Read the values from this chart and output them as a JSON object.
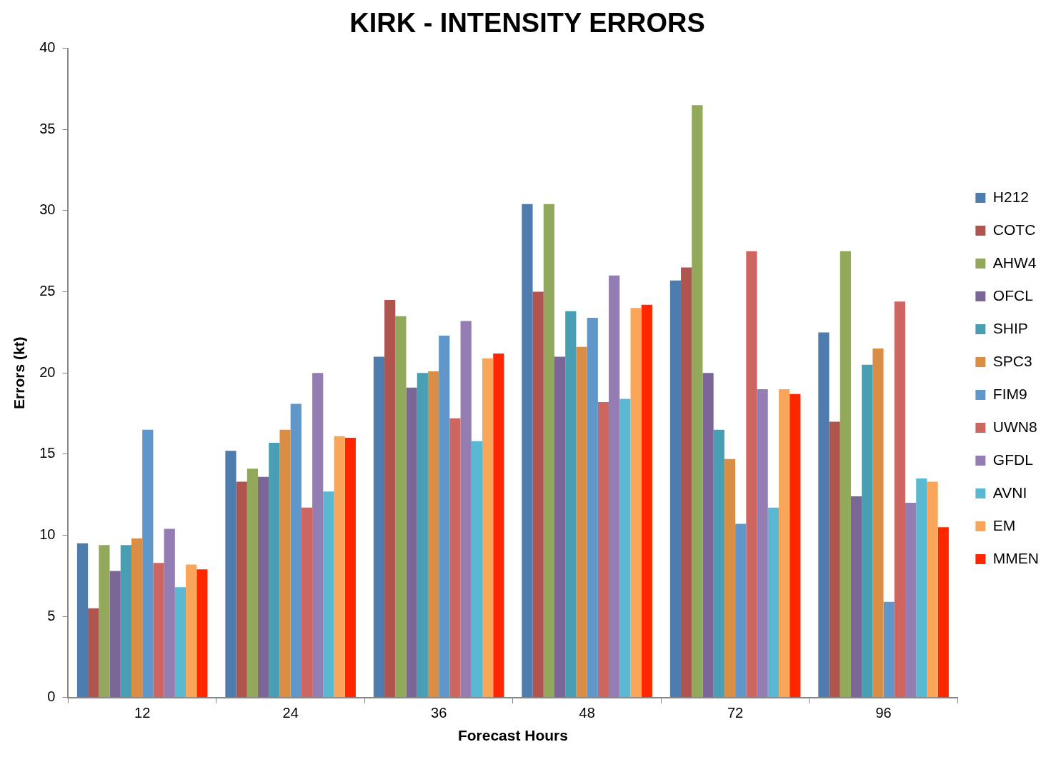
{
  "chart_data": {
    "type": "bar",
    "title": "KIRK - INTENSITY ERRORS",
    "xlabel": "Forecast Hours",
    "ylabel": "Errors (kt)",
    "categories": [
      "12",
      "24",
      "36",
      "48",
      "72",
      "96"
    ],
    "series": [
      {
        "name": "H212",
        "color": "#4f7cae",
        "values": [
          9.5,
          15.2,
          21.0,
          30.4,
          25.7,
          22.5
        ]
      },
      {
        "name": "COTC",
        "color": "#b0544f",
        "values": [
          5.5,
          13.3,
          24.5,
          25.0,
          26.5,
          17.0
        ]
      },
      {
        "name": "AHW4",
        "color": "#92a85a",
        "values": [
          9.4,
          14.1,
          23.5,
          30.4,
          36.5,
          27.5
        ]
      },
      {
        "name": "OFCL",
        "color": "#7c6697",
        "values": [
          7.8,
          13.6,
          19.1,
          21.0,
          20.0,
          12.4
        ]
      },
      {
        "name": "SHIP",
        "color": "#489eb3",
        "values": [
          9.4,
          15.7,
          20.0,
          23.8,
          16.5,
          20.5
        ]
      },
      {
        "name": "SPC3",
        "color": "#d98d45",
        "values": [
          9.8,
          16.5,
          20.1,
          21.6,
          14.7,
          21.5
        ]
      },
      {
        "name": "FIM9",
        "color": "#6097cb",
        "values": [
          16.5,
          18.1,
          22.3,
          23.4,
          10.7,
          5.9
        ]
      },
      {
        "name": "UWN8",
        "color": "#cd6660",
        "values": [
          8.3,
          11.7,
          17.2,
          18.2,
          27.5,
          24.4
        ]
      },
      {
        "name": "GFDL",
        "color": "#947db3",
        "values": [
          10.4,
          20.0,
          23.2,
          26.0,
          19.0,
          12.0
        ]
      },
      {
        "name": "AVNI",
        "color": "#5bb8d2",
        "values": [
          6.8,
          12.7,
          15.8,
          18.4,
          11.7,
          13.5
        ]
      },
      {
        "name": "EM",
        "color": "#f9a65a",
        "values": [
          8.2,
          16.1,
          20.9,
          24.0,
          19.0,
          13.3
        ]
      },
      {
        "name": "MMEN",
        "color": "#ff2600",
        "values": [
          7.9,
          16.0,
          21.2,
          24.2,
          18.7,
          10.5
        ]
      }
    ],
    "ylim": [
      0,
      40
    ],
    "yticks": [
      0,
      5,
      10,
      15,
      20,
      25,
      30,
      35,
      40
    ],
    "grid": false,
    "legend": "right"
  }
}
